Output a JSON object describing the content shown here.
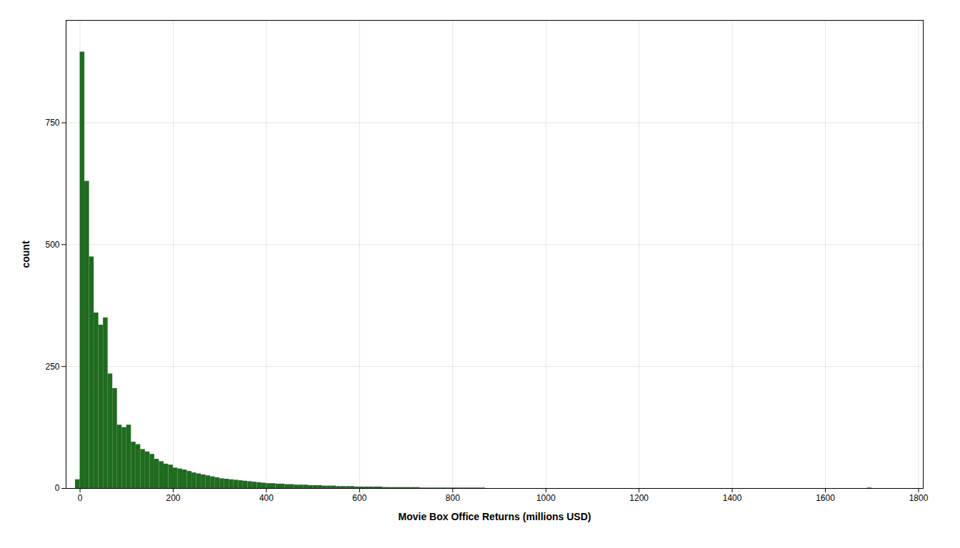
{
  "chart_data": {
    "type": "histogram",
    "xlabel": "Movie Box Office Returns (millions USD)",
    "ylabel": "count",
    "color": "#1f6b1f",
    "grid": true,
    "xlim": [
      -30,
      1810
    ],
    "ylim": [
      0,
      960
    ],
    "xticks": [
      0,
      200,
      400,
      600,
      800,
      1000,
      1200,
      1400,
      1600,
      1800
    ],
    "yticks": [
      0,
      250,
      500,
      750
    ],
    "bins": [
      -10,
      0,
      10,
      20,
      30,
      40,
      50,
      60,
      70,
      80,
      90,
      100,
      110,
      120,
      130,
      140,
      150,
      160,
      170,
      180,
      190,
      200,
      210,
      220,
      230,
      240,
      250,
      260,
      270,
      280,
      290,
      300,
      310,
      320,
      330,
      340,
      350,
      360,
      370,
      380,
      390,
      400,
      410,
      420,
      430,
      440,
      450,
      460,
      470,
      480,
      490,
      500,
      510,
      520,
      530,
      540,
      550,
      560,
      570,
      580,
      590,
      600,
      610,
      620,
      630,
      640,
      650,
      660,
      670,
      680,
      690,
      700,
      710,
      720,
      730,
      740,
      750,
      760,
      770,
      780,
      790,
      800,
      810,
      820,
      830,
      840,
      850,
      860,
      870,
      880,
      890,
      900,
      910,
      920,
      930,
      940,
      950,
      960,
      970,
      980,
      990,
      1000,
      1010,
      1020,
      1030,
      1040,
      1050,
      1060,
      1070,
      1080,
      1090,
      1100,
      1110,
      1120,
      1130,
      1140,
      1150,
      1160,
      1170,
      1180,
      1190,
      1200,
      1210,
      1220,
      1230,
      1240,
      1250,
      1260,
      1270,
      1280,
      1290,
      1300,
      1310,
      1320,
      1330,
      1340,
      1350,
      1360,
      1370,
      1380,
      1390,
      1400,
      1410,
      1420,
      1430,
      1440,
      1450,
      1460,
      1470,
      1480,
      1490,
      1500,
      1510,
      1520,
      1530,
      1540,
      1550,
      1560,
      1570,
      1580,
      1590,
      1600,
      1610,
      1620,
      1630,
      1640,
      1650,
      1660,
      1670,
      1680,
      1690,
      1700
    ],
    "values": [
      18,
      895,
      630,
      475,
      360,
      335,
      350,
      235,
      205,
      130,
      125,
      130,
      95,
      90,
      80,
      75,
      70,
      60,
      55,
      50,
      48,
      42,
      40,
      38,
      35,
      32,
      30,
      28,
      26,
      24,
      22,
      20,
      19,
      18,
      17,
      16,
      15,
      14,
      13,
      12,
      11,
      10,
      10,
      9,
      9,
      8,
      8,
      7,
      7,
      7,
      6,
      6,
      6,
      5,
      5,
      5,
      4,
      4,
      4,
      4,
      3,
      3,
      3,
      3,
      3,
      3,
      2,
      2,
      2,
      2,
      2,
      2,
      2,
      2,
      1,
      1,
      1,
      1,
      1,
      1,
      1,
      1,
      1,
      1,
      1,
      1,
      1,
      1,
      0,
      0,
      0,
      0,
      0,
      0,
      0,
      0,
      0,
      0,
      0,
      0,
      0,
      0,
      0,
      0,
      0,
      0,
      0,
      0,
      0,
      0,
      0,
      0,
      0,
      0,
      0,
      0,
      0,
      0,
      0,
      0,
      0,
      0,
      0,
      0,
      0,
      0,
      0,
      0,
      0,
      0,
      0,
      0,
      0,
      0,
      0,
      0,
      0,
      0,
      0,
      0,
      0,
      0,
      0,
      0,
      0,
      0,
      0,
      0,
      0,
      0,
      0,
      0,
      0,
      0,
      0,
      0,
      0,
      0,
      0,
      0,
      0,
      0,
      0,
      0,
      0,
      0,
      0,
      0,
      0,
      0,
      1
    ]
  }
}
